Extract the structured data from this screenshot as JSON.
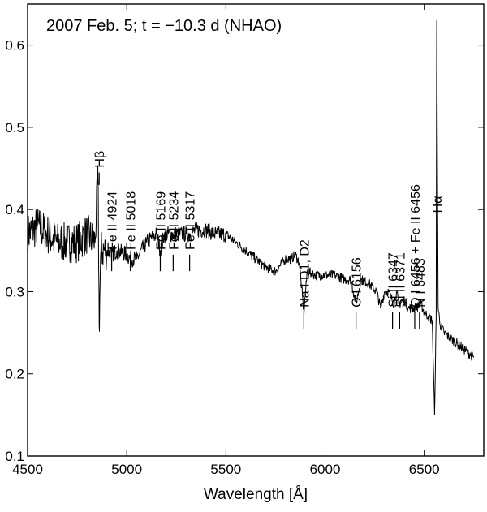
{
  "chart_data": {
    "type": "line",
    "title": "2007 Feb. 5; t = −10.3 d (NHAO)",
    "xlabel": "Wavelength [Å]",
    "ylabel": "",
    "xlim": [
      4500,
      6800
    ],
    "ylim": [
      0.1,
      0.65
    ],
    "xticks": [
      4500,
      5000,
      5500,
      6000,
      6500
    ],
    "xtick_labels": [
      "4500",
      "5000",
      "5500",
      "6000",
      "6500"
    ],
    "yticks": [
      0.1,
      0.2,
      0.3,
      0.4,
      0.5,
      0.6
    ],
    "ytick_labels": [
      "0.1",
      "0.2",
      "0.3",
      "0.4",
      "0.5",
      "0.6"
    ],
    "grid": false,
    "legend": "none",
    "series": [
      {
        "x": [
          4500,
          4550,
          4600,
          4650,
          4700,
          4750,
          4800,
          4840,
          4855,
          4861,
          4870,
          4900,
          4924,
          4950,
          5000,
          5018,
          5050,
          5100,
          5150,
          5169,
          5190,
          5234,
          5300,
          5317,
          5350,
          5400,
          5450,
          5500,
          5550,
          5600,
          5650,
          5700,
          5750,
          5800,
          5830,
          5850,
          5870,
          5893,
          5910,
          5950,
          6000,
          6050,
          6100,
          6130,
          6156,
          6180,
          6220,
          6260,
          6280,
          6300,
          6320,
          6347,
          6360,
          6371,
          6400,
          6420,
          6456,
          6483,
          6500,
          6520,
          6540,
          6552,
          6560,
          6563,
          6570,
          6580,
          6600,
          6650,
          6700,
          6750
        ],
        "y": [
          0.37,
          0.38,
          0.37,
          0.36,
          0.36,
          0.36,
          0.37,
          0.36,
          0.44,
          0.26,
          0.35,
          0.35,
          0.345,
          0.35,
          0.345,
          0.34,
          0.34,
          0.36,
          0.37,
          0.35,
          0.37,
          0.37,
          0.37,
          0.37,
          0.375,
          0.375,
          0.37,
          0.37,
          0.36,
          0.35,
          0.34,
          0.33,
          0.325,
          0.34,
          0.34,
          0.345,
          0.335,
          0.275,
          0.325,
          0.32,
          0.32,
          0.32,
          0.315,
          0.315,
          0.285,
          0.315,
          0.31,
          0.3,
          0.28,
          0.3,
          0.3,
          0.285,
          0.3,
          0.285,
          0.29,
          0.28,
          0.28,
          0.285,
          0.275,
          0.27,
          0.265,
          0.15,
          0.27,
          0.63,
          0.28,
          0.26,
          0.25,
          0.24,
          0.23,
          0.22
        ]
      }
    ],
    "annotations": [
      {
        "label": "Hβ",
        "x": 4861,
        "y_start": 0.43,
        "y_end": 0.445
      },
      {
        "label": "Fe II 4924",
        "x": 4924,
        "y_start": 0.325,
        "y_end": 0.345
      },
      {
        "label": "Fe II 5018",
        "x": 5018,
        "y_start": 0.325,
        "y_end": 0.345
      },
      {
        "label": "Fe II 5169",
        "x": 5169,
        "y_start": 0.325,
        "y_end": 0.345
      },
      {
        "label": "Fe II 5234",
        "x": 5234,
        "y_start": 0.325,
        "y_end": 0.345
      },
      {
        "label": "Fe II 5317",
        "x": 5317,
        "y_start": 0.325,
        "y_end": 0.345
      },
      {
        "label": "Na I D1, D2",
        "x": 5893,
        "y_start": 0.255,
        "y_end": 0.275
      },
      {
        "label": "O I 6156",
        "x": 6156,
        "y_start": 0.255,
        "y_end": 0.275
      },
      {
        "label": "Si II 6347",
        "x": 6340,
        "y_start": 0.255,
        "y_end": 0.275
      },
      {
        "label": "Si II 6371",
        "x": 6376,
        "y_start": 0.255,
        "y_end": 0.275
      },
      {
        "label": "O I 6456 + Fe II 6456",
        "x": 6452,
        "y_start": 0.255,
        "y_end": 0.275
      },
      {
        "label": "N I 6483",
        "x": 6476,
        "y_start": 0.255,
        "y_end": 0.275
      },
      {
        "label": "Hα",
        "x": 6563,
        "y_start": 0.39,
        "y_end": 0.39
      }
    ]
  }
}
